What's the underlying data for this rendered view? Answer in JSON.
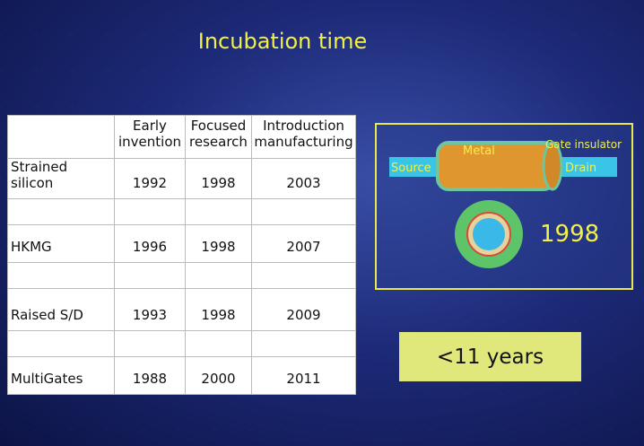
{
  "title": "Incubation time",
  "table": {
    "headers": [
      "Early invention",
      "Focused research",
      "Introduction manufacturing"
    ],
    "rows": [
      [
        "Strained silicon",
        "1992",
        "1998",
        "2003"
      ],
      [
        "HKMG",
        "1996",
        "1998",
        "2007"
      ],
      [
        "Raised S/D",
        "1993",
        "1998",
        "2009"
      ],
      [
        "MultiGates",
        "1988",
        "2000",
        "2011"
      ]
    ]
  },
  "diagram": {
    "labels": {
      "source": "Source",
      "metal": "Metal",
      "gate_insulator": "Gate insulator",
      "drain": "Drain"
    },
    "year": "1998"
  },
  "callout": "<11 years"
}
